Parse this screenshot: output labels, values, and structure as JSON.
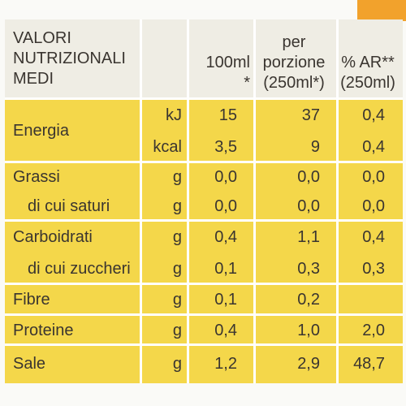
{
  "table": {
    "header": {
      "label": [
        "VALORI",
        "NUTRIZIONALI",
        "MEDI"
      ],
      "columns": [
        [
          "100ml",
          "*"
        ],
        [
          "per",
          "porzione",
          "(250ml*)"
        ],
        [
          "% AR**",
          "(250ml)"
        ]
      ]
    },
    "rows": [
      {
        "label": "Energia",
        "unit": "kJ",
        "values": [
          "15",
          "37",
          "0,4"
        ]
      },
      {
        "unit": "kcal",
        "values": [
          "3,5",
          "9",
          "0,4"
        ]
      },
      {
        "label": "Grassi",
        "unit": "g",
        "values": [
          "0,0",
          "0,0",
          "0,0"
        ]
      },
      {
        "label": "di cui saturi",
        "unit": "g",
        "values": [
          "0,0",
          "0,0",
          "0,0"
        ]
      },
      {
        "label": "Carboidrati",
        "unit": "g",
        "values": [
          "0,4",
          "1,1",
          "0,4"
        ]
      },
      {
        "label": "di cui zuccheri",
        "unit": "g",
        "values": [
          "0,1",
          "0,3",
          "0,3"
        ]
      },
      {
        "label": "Fibre",
        "unit": "g",
        "values": [
          "0,1",
          "0,2"
        ]
      },
      {
        "label": "Proteine",
        "unit": "g",
        "values": [
          "0,4",
          "1,0",
          "2,0"
        ]
      },
      {
        "label": "Sale",
        "unit": "g",
        "values": [
          "1,2",
          "2,9",
          "48,7"
        ]
      }
    ]
  }
}
